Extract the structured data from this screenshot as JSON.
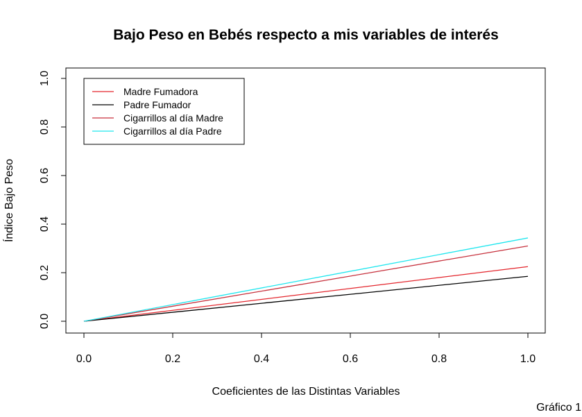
{
  "chart_data": {
    "type": "line",
    "title": "Bajo Peso en Bebés respecto a mis variables de interés",
    "xlabel": "Coeficientes de las Distintas Variables",
    "ylabel": "Índice Bajo Peso",
    "xlim": [
      0,
      1
    ],
    "ylim": [
      0,
      1
    ],
    "x_ticks": [
      "0.0",
      "0.2",
      "0.4",
      "0.6",
      "0.8",
      "1.0"
    ],
    "y_ticks": [
      "0.0",
      "0.2",
      "0.4",
      "0.6",
      "0.8",
      "1.0"
    ],
    "grid": false,
    "legend_position": "top-left",
    "series": [
      {
        "name": "Madre Fumadora",
        "color": "#e3242b",
        "x": [
          0,
          1
        ],
        "y": [
          0,
          0.225
        ]
      },
      {
        "name": "Padre Fumador",
        "color": "#000000",
        "x": [
          0,
          1
        ],
        "y": [
          0,
          0.185
        ]
      },
      {
        "name": "Cigarrillos al día Madre",
        "color": "#c62f3b",
        "x": [
          0,
          1
        ],
        "y": [
          0,
          0.31
        ]
      },
      {
        "name": "Cigarrillos al día Padre",
        "color": "#1ee6ee",
        "x": [
          0,
          1
        ],
        "y": [
          0,
          0.343
        ]
      }
    ]
  },
  "caption": "Gráfico 1"
}
